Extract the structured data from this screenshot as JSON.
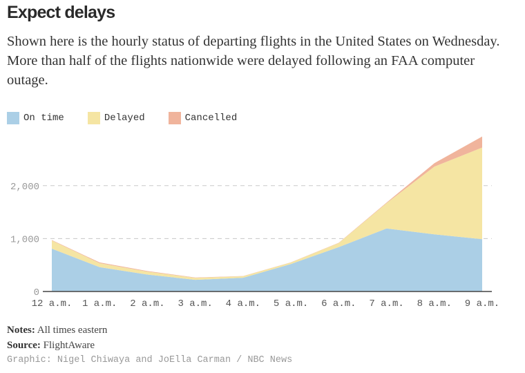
{
  "header": {
    "title": "Expect delays",
    "subtitle": "Shown here is the hourly status of departing flights in the United States on Wednesday. More than half of the flights nationwide were delayed following an FAA computer outage."
  },
  "legend": [
    {
      "label": "On time",
      "color": "#abcfe6"
    },
    {
      "label": "Delayed",
      "color": "#f5e5a3"
    },
    {
      "label": "Cancelled",
      "color": "#f0b49c"
    }
  ],
  "footer": {
    "notes_label": "Notes:",
    "notes_text": "All times eastern",
    "source_label": "Source:",
    "source_text": "FlightAware",
    "credit": "Graphic: Nigel Chiwaya and JoElla Carman / NBC News"
  },
  "chart_data": {
    "type": "area",
    "stacked": true,
    "title": "Expect delays",
    "xlabel": "",
    "ylabel": "",
    "categories": [
      "12 a.m.",
      "1 a.m.",
      "2 a.m.",
      "3 a.m.",
      "4 a.m.",
      "5 a.m.",
      "6 a.m.",
      "7 a.m.",
      "8 a.m.",
      "9 a.m."
    ],
    "series": [
      {
        "name": "On time",
        "color": "#abcfe6",
        "values": [
          810,
          460,
          320,
          220,
          260,
          520,
          840,
          1190,
          1080,
          990
        ]
      },
      {
        "name": "Delayed",
        "color": "#f5e5a3",
        "values": [
          155,
          75,
          55,
          38,
          28,
          28,
          75,
          480,
          1280,
          1730
        ]
      },
      {
        "name": "Cancelled",
        "color": "#f0b49c",
        "values": [
          8,
          15,
          12,
          7,
          4,
          3,
          5,
          10,
          65,
          210
        ]
      }
    ],
    "ylim": [
      0,
      3000
    ],
    "yticks": [
      0,
      1000,
      2000
    ],
    "ytick_labels": [
      "0",
      "1,000",
      "2,000"
    ],
    "grid": true,
    "legend_position": "top-left"
  }
}
